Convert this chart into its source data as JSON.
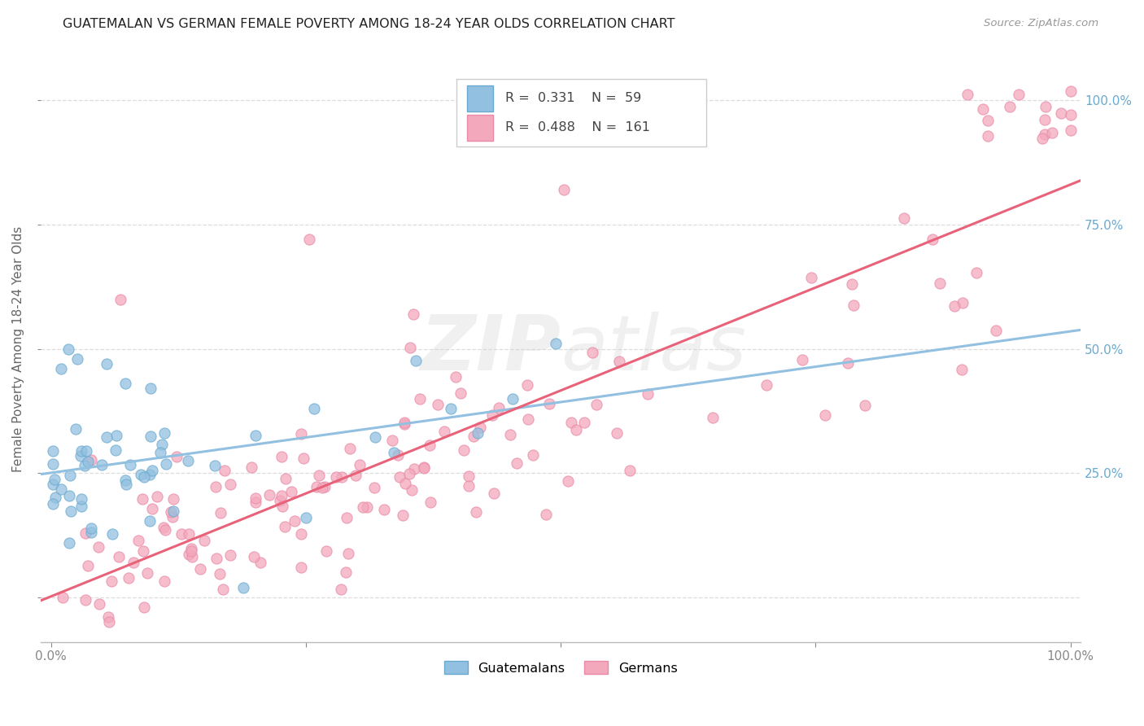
{
  "title": "GUATEMALAN VS GERMAN FEMALE POVERTY AMONG 18-24 YEAR OLDS CORRELATION CHART",
  "source": "Source: ZipAtlas.com",
  "ylabel": "Female Poverty Among 18-24 Year Olds",
  "guatemalan_color": "#92C0E0",
  "guatemalan_edge_color": "#6AAAD0",
  "german_color": "#F4A8BC",
  "german_edge_color": "#E88AA8",
  "german_line_color": "#E8637A",
  "guatemalan_line_color": "#92C0E0",
  "guatemalan_R": 0.331,
  "guatemalan_N": 59,
  "german_R": 0.488,
  "german_N": 161,
  "watermark_zip": "ZIP",
  "watermark_atlas": "atlas",
  "background_color": "#FFFFFF",
  "grid_color": "#DDDDDD",
  "right_axis_color": "#6AAAD0",
  "legend_label_1": "Guatemalans",
  "legend_label_2": "Germans"
}
